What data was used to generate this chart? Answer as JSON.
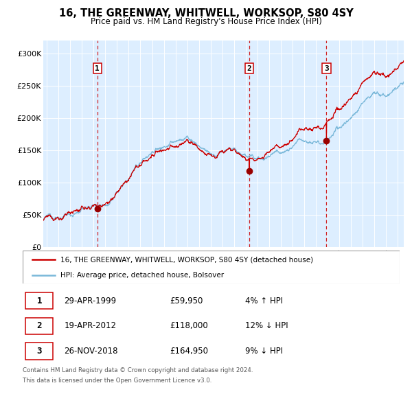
{
  "title": "16, THE GREENWAY, WHITWELL, WORKSOP, S80 4SY",
  "subtitle": "Price paid vs. HM Land Registry's House Price Index (HPI)",
  "legend_line1": "16, THE GREENWAY, WHITWELL, WORKSOP, S80 4SY (detached house)",
  "legend_line2": "HPI: Average price, detached house, Bolsover",
  "footer_line1": "Contains HM Land Registry data © Crown copyright and database right 2024.",
  "footer_line2": "This data is licensed under the Open Government Licence v3.0.",
  "transactions": [
    {
      "num": 1,
      "date": "29-APR-1999",
      "price": "£59,950",
      "hpi": "4% ↑ HPI",
      "year": 1999.32
    },
    {
      "num": 2,
      "date": "19-APR-2012",
      "price": "£118,000",
      "hpi": "12% ↓ HPI",
      "year": 2012.3
    },
    {
      "num": 3,
      "date": "26-NOV-2018",
      "price": "£164,950",
      "hpi": "9% ↓ HPI",
      "year": 2018.9
    }
  ],
  "transaction_prices": [
    59950,
    118000,
    164950
  ],
  "red_line_color": "#cc0000",
  "blue_line_color": "#7ab8d9",
  "dot_color": "#990000",
  "vline_color": "#cc0000",
  "plot_bg": "#ddeeff",
  "grid_color": "#ffffff",
  "ylim": [
    0,
    320000
  ],
  "yticks": [
    0,
    50000,
    100000,
    150000,
    200000,
    250000,
    300000
  ],
  "ytick_labels": [
    "£0",
    "£50K",
    "£100K",
    "£150K",
    "£200K",
    "£250K",
    "£300K"
  ],
  "xlim_start": 1994.7,
  "xlim_end": 2025.5,
  "xticks": [
    1995,
    1996,
    1997,
    1998,
    1999,
    2000,
    2001,
    2002,
    2003,
    2004,
    2005,
    2006,
    2007,
    2008,
    2009,
    2010,
    2011,
    2012,
    2013,
    2014,
    2015,
    2016,
    2017,
    2018,
    2019,
    2020,
    2021,
    2022,
    2023,
    2024,
    2025
  ]
}
